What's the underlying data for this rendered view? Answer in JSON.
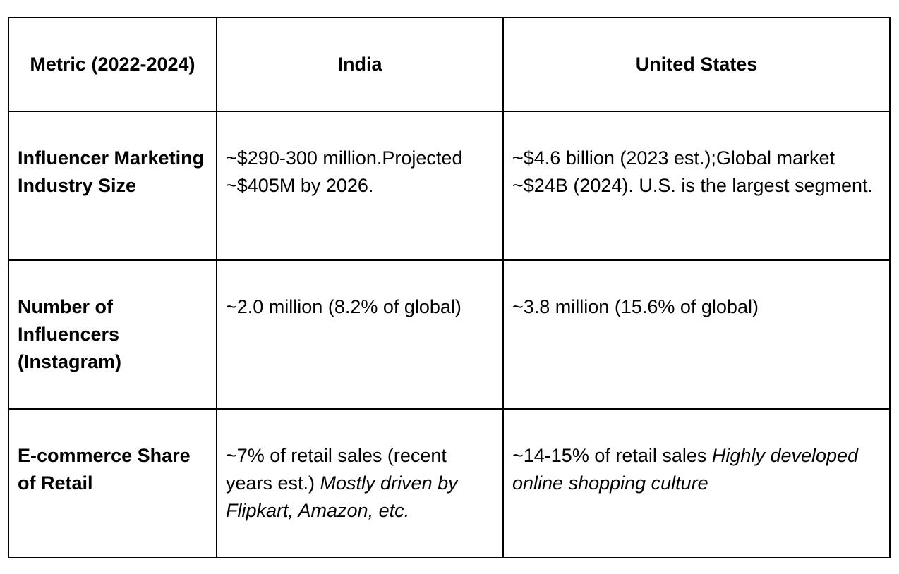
{
  "table": {
    "headers": {
      "metric": "Metric (2022-2024)",
      "india": "India",
      "us": "United States"
    },
    "rows": [
      {
        "metric": "Influencer Marketing Industry Size",
        "india": {
          "text": "~$290-300 million.Projected ~$405M by 2026.",
          "note": ""
        },
        "us": {
          "text": "~$4.6 billion (2023 est.);Global market ~$24B (2024). U.S. is the largest segment.",
          "note": ""
        }
      },
      {
        "metric": "Number of Influencers (Instagram)",
        "india": {
          "text": "~2.0 million (8.2% of global)",
          "note": ""
        },
        "us": {
          "text": "~3.8 million (15.6% of global)",
          "note": ""
        }
      },
      {
        "metric": "E-commerce Share of Retail",
        "india": {
          "text": "~7% of retail sales (recent years est.) ",
          "note": "Mostly driven by Flipkart, Amazon, etc."
        },
        "us": {
          "text": "~14-15% of retail sales ",
          "note": "Highly developed online shopping culture"
        }
      }
    ]
  }
}
